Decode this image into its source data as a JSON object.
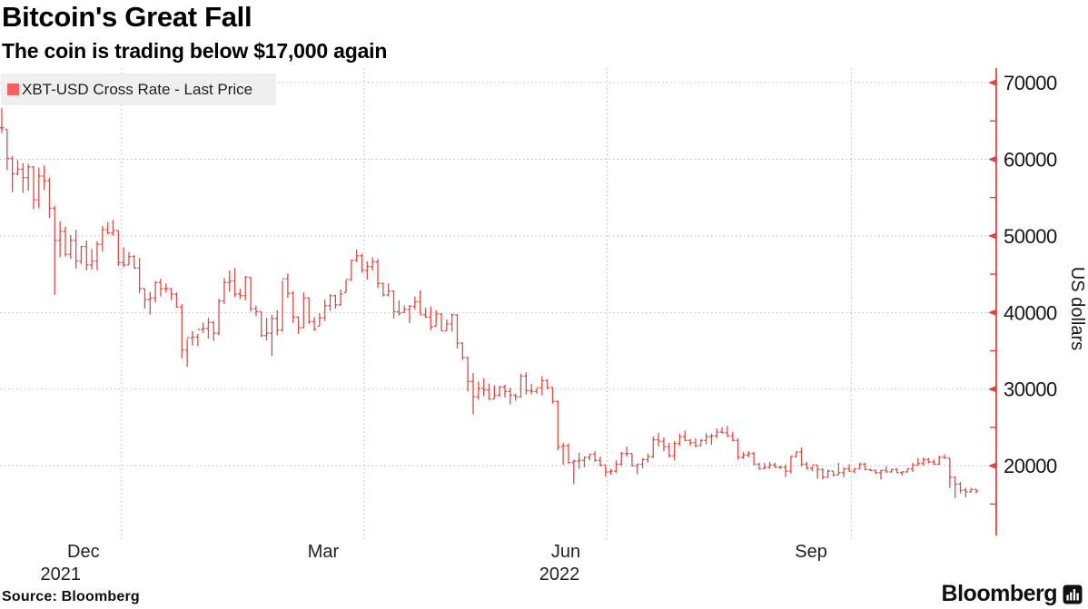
{
  "header": {
    "title": "Bitcoin's Great Fall",
    "subtitle": "The coin is trading below $17,000 again"
  },
  "legend": {
    "label": "XBT-USD Cross Rate - Last Price",
    "swatch_color": "#f4625d"
  },
  "source": {
    "label": "Source: Bloomberg"
  },
  "branding": {
    "wordmark": "Bloomberg",
    "icon": "bloomberg-terminal-icon"
  },
  "chart_data": {
    "type": "bar",
    "subtype": "hlc-price-bars",
    "title": "Bitcoin's Great Fall",
    "series_name": "XBT-USD Cross Rate - Last Price",
    "xlabel": "",
    "ylabel": "US dollars",
    "ylim": [
      10900,
      71900
    ],
    "yticks": [
      20000,
      30000,
      40000,
      50000,
      60000,
      70000
    ],
    "y_minor_ticks": [
      15000,
      25000,
      35000,
      45000,
      55000,
      65000
    ],
    "grid": "dotted",
    "legend_position": "top-left",
    "colors": {
      "bar": "#dc4b46",
      "axis": "#e5413b",
      "grid": "#bbbbbb",
      "tick_label": "#161616"
    },
    "x_axis": {
      "month_labels": [
        {
          "text": "Dec",
          "index": 15.4
        },
        {
          "text": "Mar",
          "index": 60.7
        },
        {
          "text": "Jun",
          "index": 106.5
        },
        {
          "text": "Sep",
          "index": 152.8
        }
      ],
      "year_labels": [
        {
          "text": "2021",
          "index": 11.1
        },
        {
          "text": "2022",
          "index": 105.3
        }
      ],
      "gridline_indices": [
        22.6,
        68.4,
        114.3,
        160.4
      ]
    },
    "bars_format": [
      "high",
      "low",
      "close"
    ],
    "bars": [
      [
        66700,
        63400,
        64100
      ],
      [
        63900,
        58600,
        60100
      ],
      [
        60400,
        55700,
        58100
      ],
      [
        59900,
        57900,
        58700
      ],
      [
        59500,
        55600,
        57600
      ],
      [
        59400,
        55900,
        59000
      ],
      [
        59100,
        53500,
        54700
      ],
      [
        58900,
        53600,
        57800
      ],
      [
        59200,
        56000,
        57200
      ],
      [
        57600,
        52300,
        53600
      ],
      [
        53900,
        42300,
        49400
      ],
      [
        51900,
        47200,
        50600
      ],
      [
        51200,
        47300,
        47600
      ],
      [
        50100,
        47000,
        49400
      ],
      [
        50800,
        45700,
        46700
      ],
      [
        48700,
        46300,
        48600
      ],
      [
        49400,
        45500,
        46200
      ],
      [
        48300,
        45600,
        46700
      ],
      [
        49300,
        45500,
        48900
      ],
      [
        51300,
        48000,
        50800
      ],
      [
        51800,
        50200,
        50400
      ],
      [
        52100,
        50000,
        50700
      ],
      [
        50700,
        46100,
        46500
      ],
      [
        48500,
        45900,
        46200
      ],
      [
        47900,
        46200,
        47300
      ],
      [
        47500,
        45700,
        45800
      ],
      [
        47100,
        42500,
        43100
      ],
      [
        43100,
        40500,
        41700
      ],
      [
        42700,
        39700,
        41900
      ],
      [
        44100,
        41300,
        43900
      ],
      [
        44400,
        42100,
        43100
      ],
      [
        43800,
        42600,
        43100
      ],
      [
        43200,
        41600,
        42400
      ],
      [
        42600,
        40600,
        40700
      ],
      [
        41100,
        34000,
        35100
      ],
      [
        36500,
        32900,
        36700
      ],
      [
        37600,
        35700,
        36800
      ],
      [
        37200,
        35600,
        37800
      ],
      [
        38700,
        37300,
        37900
      ],
      [
        39300,
        36600,
        38700
      ],
      [
        38900,
        36300,
        37300
      ],
      [
        41800,
        37000,
        41500
      ],
      [
        44500,
        41100,
        43900
      ],
      [
        45500,
        42700,
        44100
      ],
      [
        45800,
        42000,
        42400
      ],
      [
        43100,
        41800,
        42200
      ],
      [
        44800,
        41600,
        44600
      ],
      [
        44600,
        40100,
        40500
      ],
      [
        40900,
        39500,
        40100
      ],
      [
        40100,
        36800,
        37000
      ],
      [
        39300,
        36400,
        37300
      ],
      [
        39700,
        34300,
        39200
      ],
      [
        40300,
        37000,
        37700
      ],
      [
        44200,
        37500,
        44400
      ],
      [
        45100,
        41900,
        42500
      ],
      [
        42800,
        38600,
        39400
      ],
      [
        39500,
        37200,
        38000
      ],
      [
        42600,
        38000,
        41900
      ],
      [
        42000,
        38500,
        38800
      ],
      [
        39400,
        37600,
        37800
      ],
      [
        39900,
        38200,
        39300
      ],
      [
        41700,
        38900,
        40900
      ],
      [
        42400,
        40200,
        42200
      ],
      [
        42300,
        40500,
        41000
      ],
      [
        43000,
        40900,
        42400
      ],
      [
        44200,
        42600,
        44300
      ],
      [
        46900,
        44100,
        46800
      ],
      [
        48200,
        46600,
        47400
      ],
      [
        47700,
        45200,
        45500
      ],
      [
        46700,
        44300,
        46000
      ],
      [
        47200,
        45500,
        46600
      ],
      [
        47000,
        43200,
        43800
      ],
      [
        43900,
        42100,
        42300
      ],
      [
        43800,
        42100,
        42800
      ],
      [
        42900,
        39200,
        40100
      ],
      [
        41600,
        39600,
        39900
      ],
      [
        40900,
        40000,
        40400
      ],
      [
        41000,
        38600,
        40800
      ],
      [
        42100,
        40400,
        41400
      ],
      [
        42900,
        39800,
        39700
      ],
      [
        40600,
        39300,
        39400
      ],
      [
        40800,
        37700,
        38100
      ],
      [
        40300,
        38200,
        39800
      ],
      [
        39900,
        37600,
        37600
      ],
      [
        39100,
        37600,
        38500
      ],
      [
        39900,
        37500,
        39700
      ],
      [
        39800,
        35300,
        36000
      ],
      [
        36100,
        33800,
        34100
      ],
      [
        34200,
        29700,
        31000
      ],
      [
        32100,
        26700,
        29000
      ],
      [
        31000,
        28600,
        30100
      ],
      [
        31400,
        29100,
        29900
      ],
      [
        30700,
        28600,
        28700
      ],
      [
        30500,
        28700,
        29200
      ],
      [
        30400,
        29000,
        30300
      ],
      [
        30600,
        28900,
        29700
      ],
      [
        30200,
        28000,
        29200
      ],
      [
        29400,
        28500,
        29000
      ],
      [
        32000,
        28900,
        31700
      ],
      [
        32200,
        29300,
        29800
      ],
      [
        30700,
        29300,
        29700
      ],
      [
        30100,
        29400,
        30200
      ],
      [
        31700,
        29200,
        31100
      ],
      [
        31300,
        30000,
        30200
      ],
      [
        30300,
        28100,
        28400
      ],
      [
        28500,
        22000,
        22500
      ],
      [
        23000,
        20100,
        22600
      ],
      [
        22900,
        20300,
        20400
      ],
      [
        20800,
        17600,
        20600
      ],
      [
        21700,
        19600,
        20700
      ],
      [
        21200,
        19800,
        21100
      ],
      [
        21500,
        20700,
        21500
      ],
      [
        21900,
        20500,
        20700
      ],
      [
        21200,
        19900,
        20100
      ],
      [
        20100,
        18600,
        19200
      ],
      [
        19600,
        18800,
        19300
      ],
      [
        20700,
        19100,
        20200
      ],
      [
        21800,
        20000,
        21600
      ],
      [
        22500,
        21200,
        21600
      ],
      [
        21600,
        19900,
        20000
      ],
      [
        20200,
        18900,
        20200
      ],
      [
        21000,
        19700,
        20800
      ],
      [
        21600,
        20400,
        21200
      ],
      [
        23800,
        21000,
        23400
      ],
      [
        24300,
        22500,
        23200
      ],
      [
        23700,
        21900,
        22500
      ],
      [
        23000,
        21100,
        21300
      ],
      [
        23200,
        20700,
        22900
      ],
      [
        24200,
        22600,
        23800
      ],
      [
        24600,
        23200,
        23300
      ],
      [
        23500,
        22600,
        23000
      ],
      [
        23600,
        22400,
        22600
      ],
      [
        23500,
        22600,
        23300
      ],
      [
        24300,
        22800,
        23800
      ],
      [
        24200,
        22700,
        23900
      ],
      [
        24900,
        23600,
        24400
      ],
      [
        25000,
        24300,
        24300
      ],
      [
        25200,
        23800,
        23900
      ],
      [
        24400,
        23200,
        23300
      ],
      [
        23600,
        20800,
        21100
      ],
      [
        21800,
        20900,
        21400
      ],
      [
        21900,
        21100,
        21600
      ],
      [
        21800,
        20100,
        20200
      ],
      [
        20400,
        19500,
        19600
      ],
      [
        20400,
        19600,
        19800
      ],
      [
        20500,
        19600,
        20100
      ],
      [
        20400,
        19700,
        19800
      ],
      [
        20000,
        19600,
        19800
      ],
      [
        20200,
        18500,
        19300
      ],
      [
        21300,
        19000,
        21200
      ],
      [
        21800,
        21100,
        21800
      ],
      [
        22400,
        19900,
        20200
      ],
      [
        20500,
        19500,
        19700
      ],
      [
        19900,
        19300,
        20100
      ],
      [
        20100,
        18300,
        19500
      ],
      [
        19700,
        18200,
        18500
      ],
      [
        19500,
        18400,
        19300
      ],
      [
        19300,
        18600,
        18800
      ],
      [
        20400,
        18800,
        19100
      ],
      [
        19800,
        18500,
        19600
      ],
      [
        20200,
        19200,
        19300
      ],
      [
        19700,
        19000,
        19600
      ],
      [
        20400,
        19600,
        20200
      ],
      [
        20400,
        19400,
        19500
      ],
      [
        19600,
        19300,
        19400
      ],
      [
        19500,
        18900,
        19100
      ],
      [
        19500,
        18200,
        19400
      ],
      [
        19900,
        19100,
        19200
      ],
      [
        19600,
        19100,
        19500
      ],
      [
        19700,
        19100,
        19100
      ],
      [
        19300,
        18700,
        19200
      ],
      [
        19600,
        19100,
        19600
      ],
      [
        20400,
        19200,
        20100
      ],
      [
        21000,
        20000,
        20300
      ],
      [
        21100,
        20000,
        20800
      ],
      [
        21000,
        20300,
        20500
      ],
      [
        20800,
        20100,
        20200
      ],
      [
        21300,
        20100,
        21100
      ],
      [
        21500,
        20900,
        21000
      ],
      [
        21000,
        17100,
        18500
      ],
      [
        18600,
        15800,
        17600
      ],
      [
        17900,
        16400,
        16800
      ],
      [
        17100,
        15900,
        16600
      ],
      [
        17100,
        16500,
        16900
      ],
      [
        16900,
        16400,
        16700
      ]
    ]
  }
}
